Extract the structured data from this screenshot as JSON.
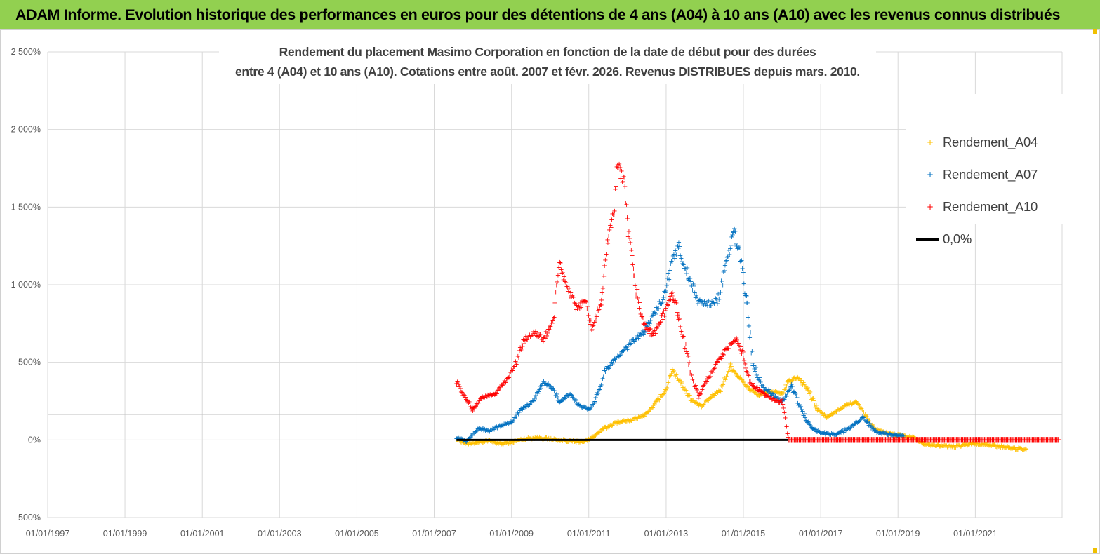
{
  "banner": {
    "title": "ADAM Informe. Evolution historique des performances en euros pour des détentions de 4 ans (A04) à 10 ans (A10) avec les revenus connus distribués"
  },
  "colors": {
    "banner_bg": "#92d050",
    "A04": "#ffc000",
    "A07": "#0070c0",
    "A10": "#ff0000",
    "zero_line": "#000000"
  },
  "chart_data": {
    "type": "scatter",
    "title_lines": [
      "Rendement du placement Masimo Corporation en fonction de la date de début pour des durées",
      "entre 4 (A04) et 10 ans (A10). Cotations entre août. 2007 et févr. 2026. Revenus DISTRIBUES depuis mars. 2010."
    ],
    "x_range": [
      "1997-01-01",
      "2023-04-01"
    ],
    "x_ticks": [
      "01/01/1997",
      "01/01/1999",
      "01/01/2001",
      "01/01/2003",
      "01/01/2005",
      "01/01/2007",
      "01/01/2009",
      "01/01/2011",
      "01/01/2013",
      "01/01/2015",
      "01/01/2017",
      "01/01/2019",
      "01/01/2021"
    ],
    "ylim": [
      -500,
      2500
    ],
    "y_ticks": [
      {
        "value": -500,
        "label": "- 500%"
      },
      {
        "value": 0,
        "label": "0%"
      },
      {
        "value": 500,
        "label": "500%"
      },
      {
        "value": 1000,
        "label": "1 000%"
      },
      {
        "value": 1500,
        "label": "1 500%"
      },
      {
        "value": 2000,
        "label": "2 000%"
      },
      {
        "value": 2500,
        "label": "2 500%"
      }
    ],
    "legend_position": "top-right",
    "series": [
      {
        "name": "Rendement_A04",
        "color_key": "A04",
        "marker": "+",
        "points": [
          [
            "2007-08-01",
            10
          ],
          [
            "2007-11-01",
            -20
          ],
          [
            "2008-03-01",
            -10
          ],
          [
            "2008-06-01",
            -5
          ],
          [
            "2008-10-01",
            -20
          ],
          [
            "2009-01-01",
            -10
          ],
          [
            "2009-05-01",
            10
          ],
          [
            "2009-09-01",
            20
          ],
          [
            "2010-01-01",
            10
          ],
          [
            "2010-06-01",
            0
          ],
          [
            "2010-10-01",
            -10
          ],
          [
            "2011-01-01",
            5
          ],
          [
            "2011-06-01",
            80
          ],
          [
            "2011-10-01",
            120
          ],
          [
            "2012-02-01",
            130
          ],
          [
            "2012-06-01",
            160
          ],
          [
            "2012-09-01",
            220
          ],
          [
            "2013-01-01",
            330
          ],
          [
            "2013-03-01",
            460
          ],
          [
            "2013-06-01",
            360
          ],
          [
            "2013-09-01",
            260
          ],
          [
            "2013-12-01",
            220
          ],
          [
            "2014-03-01",
            280
          ],
          [
            "2014-06-01",
            330
          ],
          [
            "2014-09-01",
            480
          ],
          [
            "2014-12-01",
            400
          ],
          [
            "2015-03-01",
            330
          ],
          [
            "2015-06-01",
            290
          ],
          [
            "2015-09-01",
            320
          ],
          [
            "2016-01-01",
            300
          ],
          [
            "2016-03-01",
            380
          ],
          [
            "2016-06-01",
            410
          ],
          [
            "2016-09-01",
            330
          ],
          [
            "2016-12-01",
            200
          ],
          [
            "2017-03-01",
            150
          ],
          [
            "2017-06-01",
            190
          ],
          [
            "2017-09-01",
            230
          ],
          [
            "2017-12-01",
            250
          ],
          [
            "2018-03-01",
            160
          ],
          [
            "2018-06-01",
            70
          ],
          [
            "2018-09-01",
            50
          ],
          [
            "2018-12-01",
            40
          ],
          [
            "2019-03-01",
            30
          ],
          [
            "2019-06-01",
            20
          ],
          [
            "2019-09-01",
            -20
          ],
          [
            "2020-01-01",
            -30
          ],
          [
            "2020-06-01",
            -40
          ],
          [
            "2020-12-01",
            -20
          ],
          [
            "2021-06-01",
            -30
          ],
          [
            "2022-01-01",
            -50
          ],
          [
            "2022-05-01",
            -60
          ]
        ]
      },
      {
        "name": "Rendement_A07",
        "color_key": "A07",
        "marker": "+",
        "points": [
          [
            "2007-08-01",
            20
          ],
          [
            "2007-11-01",
            0
          ],
          [
            "2008-03-01",
            80
          ],
          [
            "2008-06-01",
            60
          ],
          [
            "2008-10-01",
            100
          ],
          [
            "2009-01-01",
            120
          ],
          [
            "2009-04-01",
            200
          ],
          [
            "2009-08-01",
            260
          ],
          [
            "2009-11-01",
            380
          ],
          [
            "2010-02-01",
            330
          ],
          [
            "2010-04-01",
            250
          ],
          [
            "2010-07-01",
            300
          ],
          [
            "2010-10-01",
            230
          ],
          [
            "2011-01-01",
            200
          ],
          [
            "2011-03-01",
            250
          ],
          [
            "2011-06-01",
            450
          ],
          [
            "2011-09-01",
            520
          ],
          [
            "2011-12-01",
            580
          ],
          [
            "2012-03-01",
            650
          ],
          [
            "2012-06-01",
            700
          ],
          [
            "2012-09-01",
            800
          ],
          [
            "2012-12-01",
            920
          ],
          [
            "2013-03-01",
            1150
          ],
          [
            "2013-05-01",
            1250
          ],
          [
            "2013-08-01",
            1050
          ],
          [
            "2013-11-01",
            900
          ],
          [
            "2014-02-01",
            880
          ],
          [
            "2014-05-01",
            900
          ],
          [
            "2014-08-01",
            1150
          ],
          [
            "2014-10-01",
            1350
          ],
          [
            "2014-12-01",
            1200
          ],
          [
            "2015-02-01",
            900
          ],
          [
            "2015-04-01",
            500
          ],
          [
            "2015-07-01",
            350
          ],
          [
            "2015-10-01",
            300
          ],
          [
            "2016-01-01",
            250
          ],
          [
            "2016-04-01",
            350
          ],
          [
            "2016-07-01",
            200
          ],
          [
            "2016-10-01",
            80
          ],
          [
            "2017-01-01",
            50
          ],
          [
            "2017-06-01",
            40
          ],
          [
            "2017-10-01",
            80
          ],
          [
            "2018-02-01",
            150
          ],
          [
            "2018-06-01",
            60
          ],
          [
            "2018-10-01",
            40
          ],
          [
            "2019-03-01",
            30
          ]
        ]
      },
      {
        "name": "Rendement_A10",
        "color_key": "A10",
        "marker": "+",
        "points": [
          [
            "2007-08-01",
            380
          ],
          [
            "2007-10-01",
            300
          ],
          [
            "2008-01-01",
            200
          ],
          [
            "2008-04-01",
            280
          ],
          [
            "2008-08-01",
            300
          ],
          [
            "2008-11-01",
            380
          ],
          [
            "2009-02-01",
            480
          ],
          [
            "2009-05-01",
            650
          ],
          [
            "2009-08-01",
            700
          ],
          [
            "2009-11-01",
            650
          ],
          [
            "2010-02-01",
            780
          ],
          [
            "2010-04-01",
            1150
          ],
          [
            "2010-06-01",
            1000
          ],
          [
            "2010-09-01",
            850
          ],
          [
            "2010-12-01",
            900
          ],
          [
            "2011-02-01",
            720
          ],
          [
            "2011-05-01",
            900
          ],
          [
            "2011-07-01",
            1300
          ],
          [
            "2011-09-01",
            1500
          ],
          [
            "2011-10-01",
            1800
          ],
          [
            "2011-12-01",
            1650
          ],
          [
            "2012-01-01",
            1400
          ],
          [
            "2012-03-01",
            1050
          ],
          [
            "2012-06-01",
            750
          ],
          [
            "2012-09-01",
            680
          ],
          [
            "2012-12-01",
            800
          ],
          [
            "2013-03-01",
            950
          ],
          [
            "2013-05-01",
            800
          ],
          [
            "2013-08-01",
            500
          ],
          [
            "2013-11-01",
            280
          ],
          [
            "2014-02-01",
            400
          ],
          [
            "2014-05-01",
            500
          ],
          [
            "2014-08-01",
            600
          ],
          [
            "2014-11-01",
            650
          ],
          [
            "2015-01-01",
            550
          ],
          [
            "2015-03-01",
            380
          ],
          [
            "2015-06-01",
            320
          ],
          [
            "2015-09-01",
            280
          ],
          [
            "2015-12-01",
            250
          ],
          [
            "2016-01-01",
            250
          ],
          [
            "2016-03-01",
            0
          ],
          [
            "2023-03-01",
            0
          ]
        ]
      }
    ],
    "reference_lines": [
      {
        "name": "0,0%",
        "value": 0,
        "from": "2007-08-01",
        "to": "2016-03-01"
      }
    ]
  }
}
